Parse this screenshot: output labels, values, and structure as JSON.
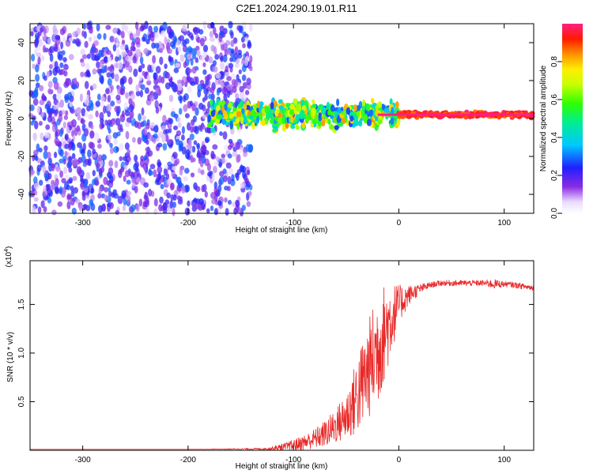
{
  "figure_title": "C2E1.2024.290.19.01.R11",
  "chart_data": [
    {
      "type": "heatmap",
      "title": "",
      "xlabel": "Height of straight line (km)",
      "ylabel": "Frequency (Hz)",
      "xlim": [
        -350,
        128
      ],
      "ylim": [
        -50,
        50
      ],
      "x_ticks": [
        -300,
        -200,
        -100,
        0,
        100
      ],
      "x_tick_labels": [
        "-300",
        "-200",
        "-100",
        "0",
        "100"
      ],
      "y_ticks": [
        -40,
        -20,
        0,
        20,
        40
      ],
      "y_tick_labels": [
        "-40",
        "-20",
        "0",
        "20",
        "40"
      ],
      "colorbar": {
        "label": "Normalized spectral amplitude",
        "range": [
          0,
          1
        ],
        "ticks": [
          0.0,
          0.2,
          0.4,
          0.6,
          0.8
        ],
        "tick_labels": [
          "0.0",
          "0.2",
          "0.4",
          "0.6",
          "0.8"
        ],
        "colormap": "rainbow: white-violet-blue-cyan-green-yellow-orange-red-magenta"
      },
      "regions": [
        {
          "name": "noise",
          "x_range": [
            -350,
            -140
          ],
          "y_range": [
            -50,
            50
          ],
          "amplitude_range": [
            0.05,
            0.3
          ]
        },
        {
          "name": "transition",
          "x_range": [
            -180,
            0
          ],
          "y_center": 2,
          "y_spread": 6,
          "amplitude_range": [
            0.25,
            0.85
          ]
        },
        {
          "name": "carrier",
          "x_range": [
            0,
            128
          ],
          "y_center": 2,
          "y_spread": 1.5,
          "amplitude_range": [
            0.85,
            1.0
          ]
        }
      ]
    },
    {
      "type": "line",
      "title": "",
      "xlabel": "Height of straight line (km)",
      "ylabel": "SNR (10 * v/v)",
      "y_multiplier": "(x10",
      "y_multiplier_exponent": "4",
      "y_multiplier_close": ")",
      "xlim": [
        -350,
        128
      ],
      "ylim": [
        0,
        1.95
      ],
      "x_ticks": [
        -300,
        -200,
        -100,
        0,
        100
      ],
      "x_tick_labels": [
        "-300",
        "-200",
        "-100",
        "0",
        "100"
      ],
      "y_ticks": [
        0.5,
        1.0,
        1.5
      ],
      "y_tick_labels": [
        "0.5",
        "1.0",
        "1.5"
      ],
      "line_color": "#e82828",
      "series": [
        {
          "x": [
            -350,
            -200,
            -125,
            -110,
            -100,
            -90,
            -80,
            -70,
            -60,
            -50,
            -40,
            -30,
            -20,
            -10,
            0,
            10,
            20,
            30,
            40,
            60,
            80,
            90,
            100,
            110,
            128
          ],
          "values": [
            0.01,
            0.01,
            0.015,
            0.03,
            0.05,
            0.08,
            0.12,
            0.17,
            0.25,
            0.35,
            0.55,
            0.8,
            1.05,
            1.3,
            1.5,
            1.6,
            1.66,
            1.7,
            1.72,
            1.72,
            1.72,
            1.71,
            1.71,
            1.7,
            1.67
          ],
          "spread": [
            0.0,
            0.0,
            0.01,
            0.04,
            0.06,
            0.08,
            0.1,
            0.14,
            0.18,
            0.25,
            0.4,
            0.5,
            0.6,
            0.45,
            0.2,
            0.1,
            0.05,
            0.03,
            0.03,
            0.03,
            0.03,
            0.05,
            0.03,
            0.03,
            0.03
          ]
        }
      ]
    }
  ]
}
